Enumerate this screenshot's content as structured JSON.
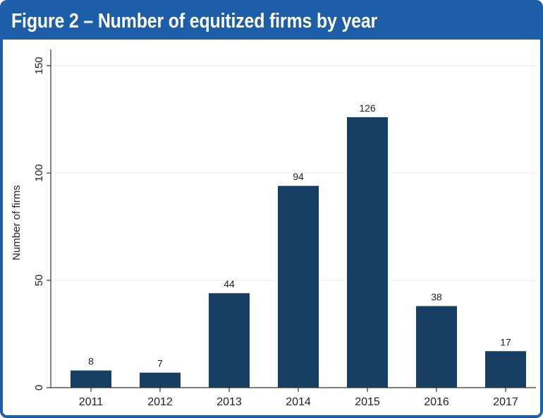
{
  "figure": {
    "title": "Figure 2 – Number of equitized firms by year"
  },
  "colors": {
    "frame": "#1c5ea8",
    "bar": "#173f63",
    "grid": "#e8edf2",
    "axis": "#333333"
  },
  "chart_data": {
    "type": "bar",
    "categories": [
      "2011",
      "2012",
      "2013",
      "2014",
      "2015",
      "2016",
      "2017"
    ],
    "values": [
      8,
      7,
      44,
      94,
      126,
      38,
      17
    ],
    "data_labels": [
      "8",
      "7",
      "44",
      "94",
      "126",
      "38",
      "17"
    ],
    "title": "Figure 2 – Number of equitized firms by year",
    "xlabel": "",
    "ylabel": "Number of firms",
    "ylim": [
      0,
      150
    ],
    "yticks": [
      0,
      50,
      100,
      150
    ],
    "ytick_labels": [
      "0",
      "50",
      "100",
      "150"
    ],
    "grid": true,
    "legend": "none"
  }
}
